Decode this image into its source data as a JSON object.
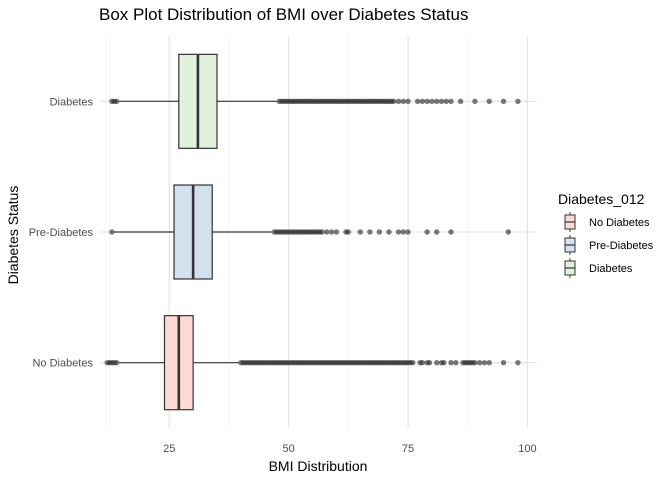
{
  "chart_data": {
    "type": "boxplot",
    "orientation": "horizontal",
    "title": "Box Plot Distribution of BMI over Diabetes Status",
    "xlabel": "BMI Distribution",
    "ylabel": "Diabetes Status",
    "xlim": [
      10.5,
      102
    ],
    "x_ticks": [
      25,
      50,
      75,
      100
    ],
    "grid": true,
    "legend_placement": "right",
    "legend_title": "Diabetes_012",
    "categories": [
      "No Diabetes",
      "Pre-Diabetes",
      "Diabetes"
    ],
    "series": [
      {
        "name": "No Diabetes",
        "color": "#F8766D",
        "fill": "#fddad6",
        "whisker_low": 14.5,
        "q1": 24,
        "median": 27,
        "q3": 30,
        "whisker_high": 39.5,
        "outliers": [
          12,
          12.5,
          13,
          13.5,
          14,
          40,
          40.5,
          41,
          41.5,
          42,
          42.5,
          43,
          43.5,
          44,
          44.5,
          45,
          45.5,
          46,
          46.5,
          47,
          47.5,
          48,
          48.5,
          49,
          49.5,
          50,
          50.5,
          51,
          51.5,
          52,
          52.5,
          53,
          53.5,
          54,
          54.5,
          55,
          55.5,
          56,
          56.5,
          57,
          57.5,
          58,
          58.5,
          59,
          59.5,
          60,
          60.5,
          61,
          61.5,
          62,
          62.5,
          63,
          63.5,
          64,
          64.5,
          65,
          65.5,
          66,
          66.5,
          67,
          67.5,
          68,
          68.5,
          69,
          69.5,
          70,
          70.5,
          71,
          71.5,
          72,
          72.5,
          73,
          73.5,
          74,
          74.5,
          75,
          75.5,
          76,
          77.5,
          78,
          79,
          79.5,
          81,
          82,
          82.5,
          84,
          85,
          86.5,
          87,
          87.5,
          88,
          88.5,
          89,
          90,
          91,
          92,
          95,
          98
        ]
      },
      {
        "name": "Pre-Diabetes",
        "color": "#3D6FA8",
        "fill": "#d4e0ee",
        "whisker_low": 13.5,
        "q1": 26,
        "median": 30,
        "q3": 34,
        "whisker_high": 46.5,
        "outliers": [
          13,
          47,
          47.5,
          48,
          48.5,
          49,
          49.5,
          50,
          50.5,
          51,
          51.5,
          52,
          52.5,
          53,
          53.5,
          54,
          54.5,
          55,
          55.5,
          56,
          56.5,
          57,
          58,
          59,
          60,
          62,
          62.5,
          65,
          67,
          69,
          71,
          73,
          74,
          75,
          79,
          81,
          84,
          96
        ]
      },
      {
        "name": "Diabetes",
        "color": "#4DAF4A",
        "fill": "#e0f2dc",
        "whisker_low": 14.5,
        "q1": 27,
        "median": 31,
        "q3": 35,
        "whisker_high": 47.5,
        "outliers": [
          13,
          13.5,
          14,
          48,
          48.5,
          49,
          49.5,
          50,
          50.5,
          51,
          51.5,
          52,
          52.5,
          53,
          53.5,
          54,
          54.5,
          55,
          55.5,
          56,
          56.5,
          57,
          57.5,
          58,
          58.5,
          59,
          59.5,
          60,
          60.5,
          61,
          61.5,
          62,
          62.5,
          63,
          63.5,
          64,
          64.5,
          65,
          65.5,
          66,
          66.5,
          67,
          67.5,
          68,
          68.5,
          69,
          69.5,
          70,
          70.5,
          71,
          71.5,
          72,
          73,
          74,
          75,
          77,
          78,
          79,
          80,
          81,
          82,
          83,
          84,
          86,
          89,
          92,
          95,
          98
        ]
      }
    ]
  }
}
